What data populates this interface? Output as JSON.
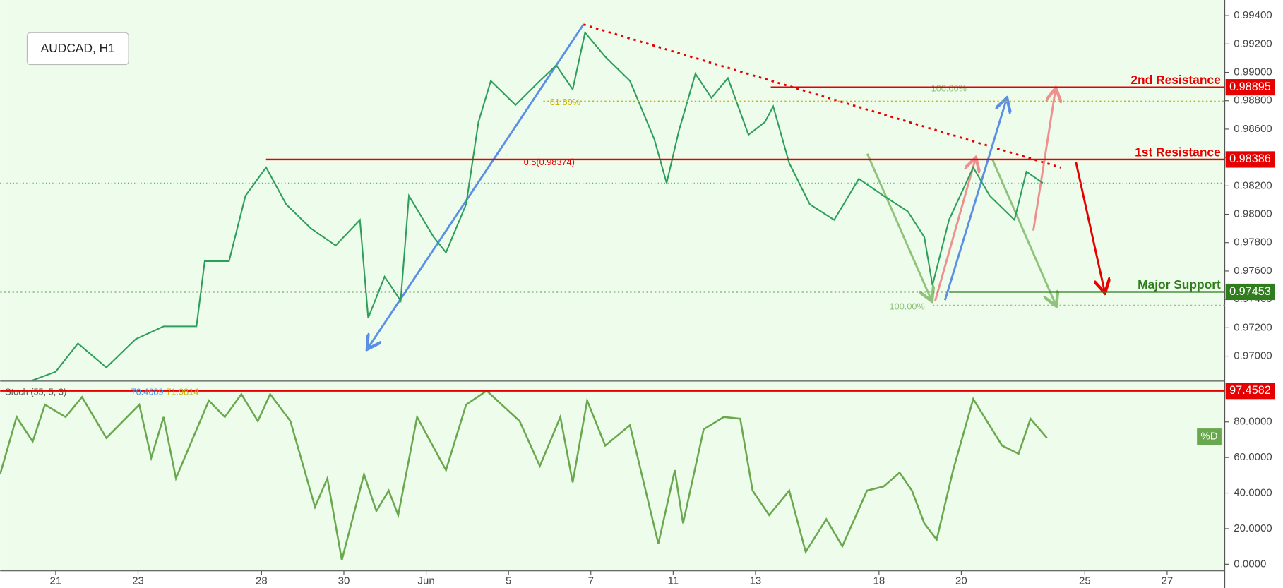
{
  "chart_data": [
    {
      "type": "line",
      "title": "AUDCAD, H1",
      "color": "#2e9e5b",
      "x": [
        -0.56,
        0,
        0.54,
        1.23,
        1.94,
        2.62,
        3.42,
        3.62,
        4.21,
        4.61,
        5.11,
        5.6,
        6.2,
        6.8,
        7.39,
        7.59,
        7.99,
        8.38,
        8.58,
        9.18,
        9.48,
        9.97,
        10.27,
        10.57,
        11.17,
        11.76,
        12.16,
        12.56,
        12.86,
        13.35,
        13.95,
        14.54,
        14.84,
        15.14,
        15.54,
        15.93,
        16.33,
        16.83,
        17.23,
        17.43,
        17.82,
        18.32,
        18.91,
        19.51,
        20.11,
        20.7,
        21.1,
        21.3,
        21.7,
        22.29,
        22.69,
        23.29,
        23.58,
        23.98
      ],
      "values": [
        0.9683,
        0.9689,
        0.9709,
        0.9692,
        0.9712,
        0.9721,
        0.9721,
        0.9767,
        0.9767,
        0.9813,
        0.9833,
        0.9807,
        0.979,
        0.9778,
        0.9796,
        0.9727,
        0.9756,
        0.9739,
        0.9813,
        0.9784,
        0.9773,
        0.9807,
        0.9865,
        0.9894,
        0.9877,
        0.9894,
        0.9905,
        0.9888,
        0.9928,
        0.9911,
        0.9894,
        0.9853,
        0.9822,
        0.9859,
        0.9899,
        0.9882,
        0.9896,
        0.9856,
        0.9865,
        0.9876,
        0.9836,
        0.9807,
        0.9796,
        0.9825,
        0.9813,
        0.9802,
        0.9784,
        0.975,
        0.9796,
        0.9833,
        0.9813,
        0.9796,
        0.983,
        0.9822
      ],
      "xlim": [
        -1.35,
        28.4
      ],
      "ylim": [
        0.9683,
        0.9951
      ],
      "xticks": [
        {
          "value": 0,
          "label": "21"
        },
        {
          "value": 2,
          "label": "23"
        },
        {
          "value": 5,
          "label": "28"
        },
        {
          "value": 7,
          "label": "30"
        },
        {
          "value": 9,
          "label": "Jun"
        },
        {
          "value": 11,
          "label": "5"
        },
        {
          "value": 13,
          "label": "7"
        },
        {
          "value": 15,
          "label": "11"
        },
        {
          "value": 17,
          "label": "13"
        },
        {
          "value": 20,
          "label": "18"
        },
        {
          "value": 22,
          "label": "20"
        },
        {
          "value": 25,
          "label": "25"
        },
        {
          "value": 27,
          "label": "27"
        }
      ],
      "yticks": [
        {
          "value": 0.97,
          "label": "0.97000"
        },
        {
          "value": 0.972,
          "label": "0.97200"
        },
        {
          "value": 0.974,
          "label": "0.97400"
        },
        {
          "value": 0.976,
          "label": "0.97600"
        },
        {
          "value": 0.978,
          "label": "0.97800"
        },
        {
          "value": 0.98,
          "label": "0.98000"
        },
        {
          "value": 0.982,
          "label": "0.98200"
        },
        {
          "value": 0.984,
          "label": "0.98400"
        },
        {
          "value": 0.986,
          "label": "0.98600"
        },
        {
          "value": 0.988,
          "label": "0.98800"
        },
        {
          "value": 0.99,
          "label": "0.99000"
        },
        {
          "value": 0.992,
          "label": "0.99200"
        },
        {
          "value": 0.994,
          "label": "0.99400"
        }
      ],
      "levels": [
        {
          "label": "2nd Resistance",
          "value": 0.98895,
          "color": "#e60000"
        },
        {
          "label": "1st Resistance",
          "value": 0.98386,
          "color": "#e60000"
        },
        {
          "label": "Major Support",
          "value": 0.97453,
          "color": "#2f7d1e"
        }
      ],
      "annotations": [
        {
          "label": "0.5(0.98374)",
          "value": 0.98374,
          "color": "#e60000"
        },
        {
          "label": "61.80%",
          "value": 0.98796,
          "color": "#c8b400"
        },
        {
          "label": "100.00%",
          "value": 0.98895,
          "color": "#8fc37a"
        },
        {
          "label": "100.00%",
          "value": 0.97358,
          "color": "#8fc37a"
        }
      ]
    },
    {
      "type": "line",
      "title": "Stoch (55, 5, 3)",
      "color": "#6aa84f",
      "series_label": "%D",
      "readouts": [
        {
          "value": 70.4689,
          "color": "#4a90e2"
        },
        {
          "value": 71.9814,
          "color": "#c8b400"
        }
      ],
      "x": [
        -1.35,
        -0.95,
        -0.56,
        -0.26,
        0.24,
        0.64,
        1.23,
        2.03,
        2.32,
        2.62,
        2.92,
        3.72,
        4.11,
        4.51,
        4.91,
        5.21,
        5.7,
        6.3,
        6.6,
        6.95,
        7.49,
        7.79,
        8.09,
        8.32,
        8.78,
        9.48,
        9.97,
        10.47,
        11.27,
        11.76,
        12.26,
        12.56,
        12.91,
        13.35,
        13.95,
        14.64,
        15.04,
        15.24,
        15.74,
        16.23,
        16.63,
        16.93,
        17.33,
        17.82,
        18.22,
        18.72,
        19.11,
        19.71,
        20.11,
        20.5,
        20.8,
        21.1,
        21.4,
        21.8,
        22.29,
        22.99,
        23.39,
        23.68,
        24.08
      ],
      "values": [
        50.6,
        82.8,
        69,
        89.7,
        82.8,
        94,
        71,
        89.7,
        59.8,
        82.8,
        48.3,
        92,
        82.8,
        95.6,
        80.5,
        95.6,
        80.5,
        32.2,
        48.3,
        2.3,
        50.6,
        29.9,
        41.4,
        27.6,
        82.8,
        52.9,
        89.7,
        97.5,
        80.5,
        55.2,
        82.8,
        46,
        92,
        66.7,
        78.2,
        11.5,
        52.9,
        23,
        75.9,
        82.8,
        81.8,
        41.4,
        27.6,
        41.4,
        6.9,
        25.3,
        10.1,
        41.4,
        43.7,
        51.5,
        41.4,
        23,
        13.8,
        52.9,
        92.9,
        66.7,
        62.1,
        81.8,
        71
      ],
      "xlim": [
        -1.35,
        28.4
      ],
      "ylim": [
        -3.7,
        102.5
      ],
      "yticks": [
        {
          "value": 0,
          "label": "0.0000"
        },
        {
          "value": 20,
          "label": "20.0000"
        },
        {
          "value": 40,
          "label": "40.0000"
        },
        {
          "value": 60,
          "label": "60.0000"
        },
        {
          "value": 80,
          "label": "80.0000"
        }
      ],
      "levels": [
        {
          "value": 97.4582,
          "color": "#e60000"
        }
      ]
    }
  ]
}
